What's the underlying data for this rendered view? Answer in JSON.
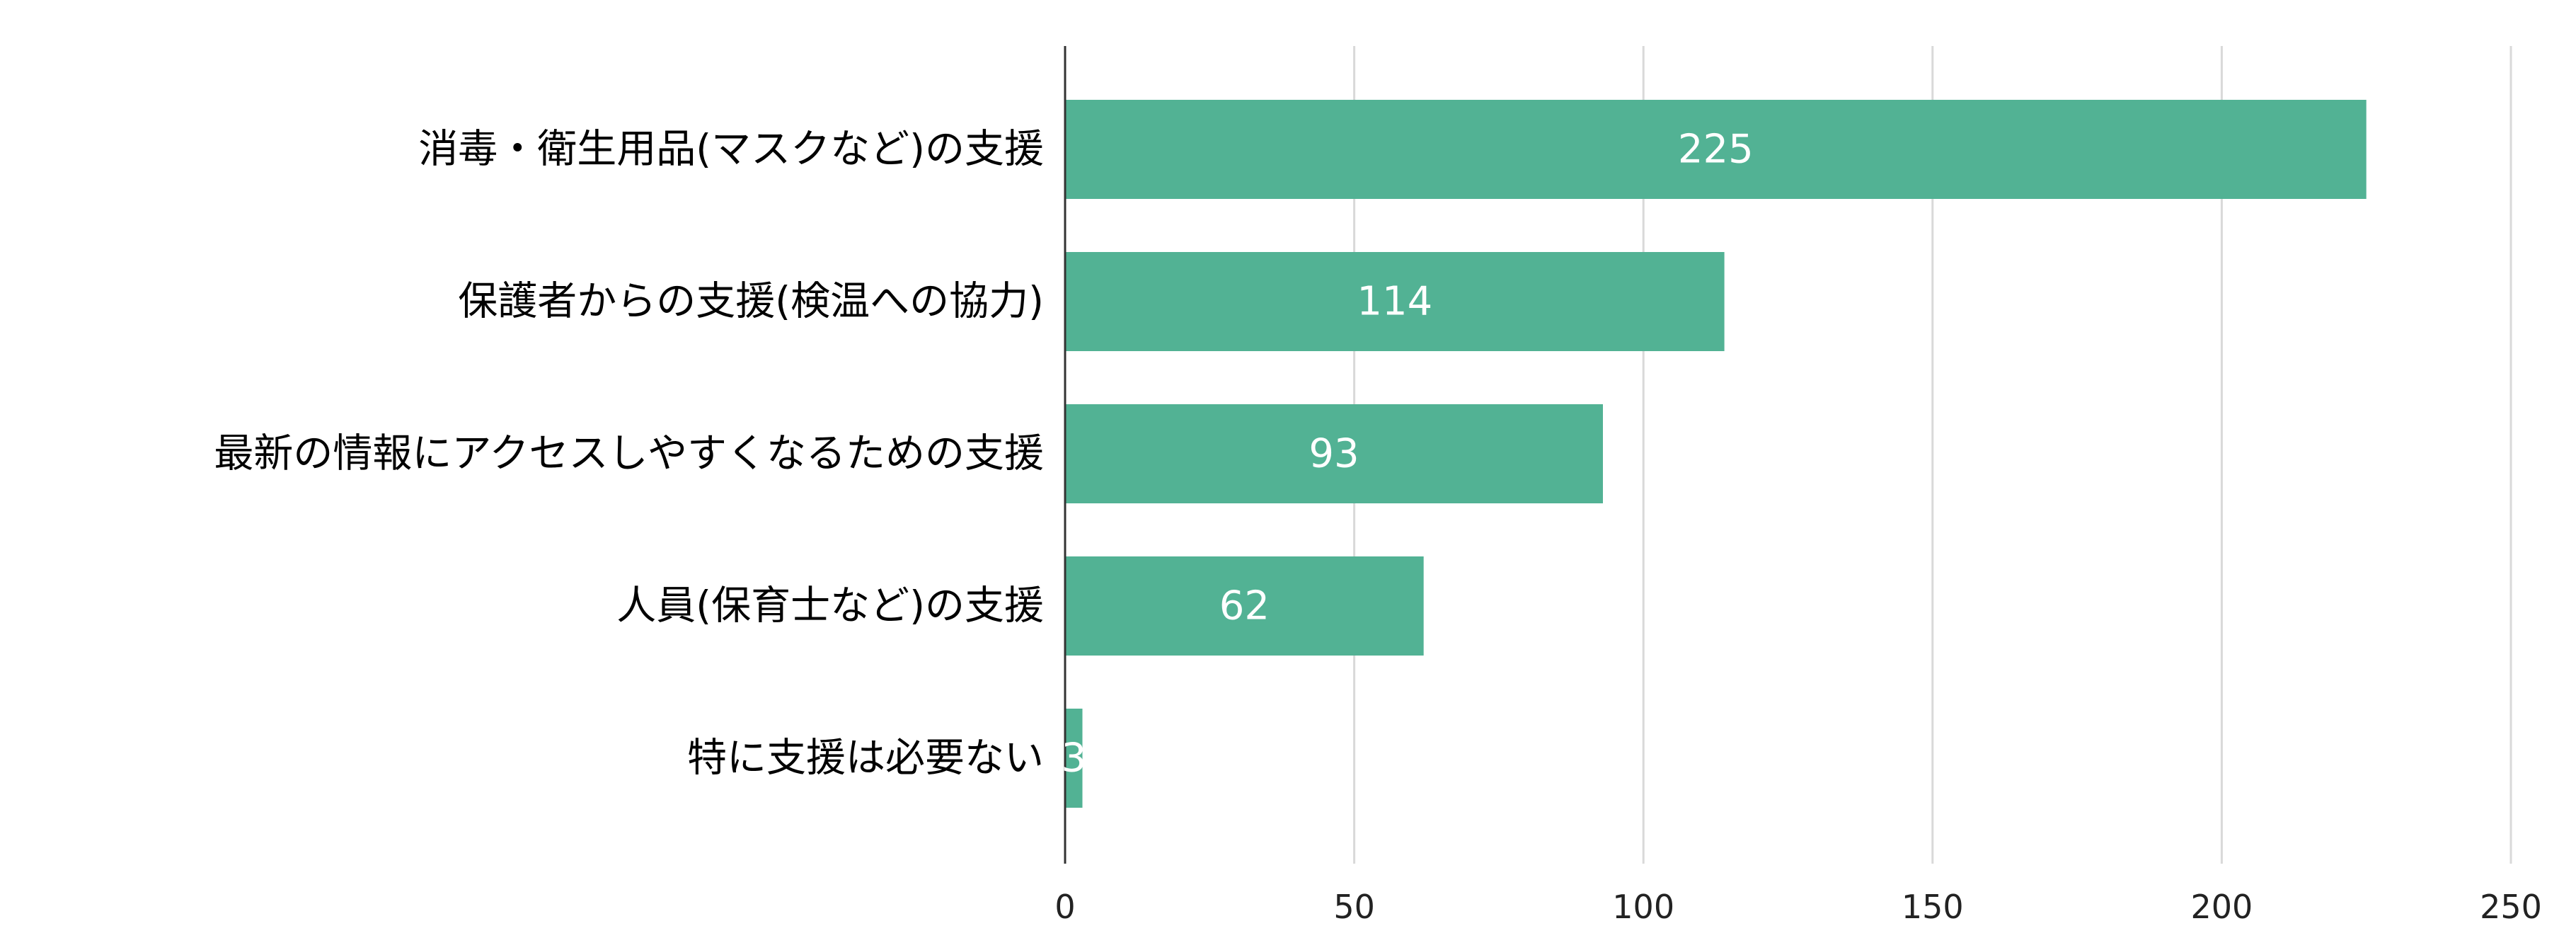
{
  "chart_data": {
    "type": "bar",
    "orientation": "horizontal",
    "categories": [
      "消毒・衛生用品(マスクなど)の支援",
      "保護者からの支援(検温への協力)",
      "最新の情報にアクセスしやすくなるための支援",
      "人員(保育士など)の支援",
      "特に支援は必要ない"
    ],
    "values": [
      225,
      114,
      93,
      62,
      3
    ],
    "xlim": [
      0,
      250
    ],
    "xticks": [
      "0",
      "50",
      "100",
      "150",
      "200",
      "250"
    ],
    "grid": true,
    "data_labels": true,
    "bar_color": "#52b294"
  }
}
